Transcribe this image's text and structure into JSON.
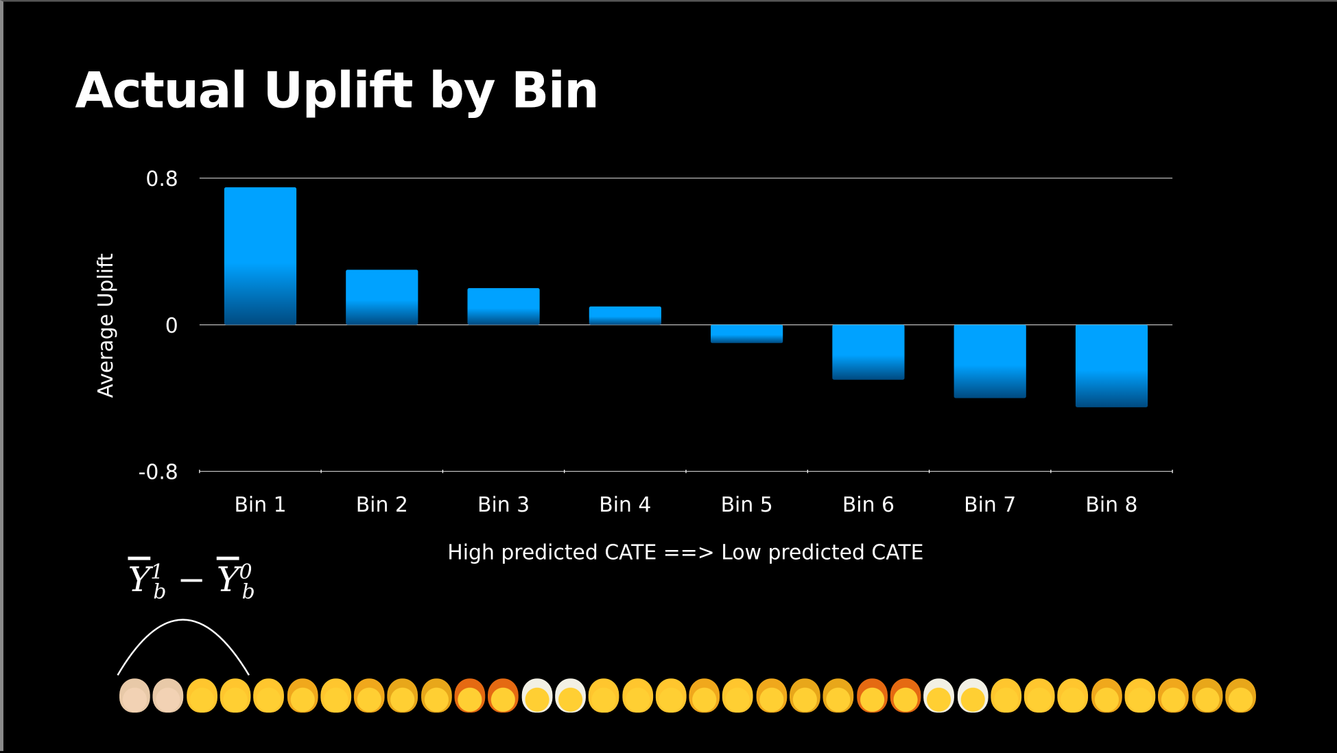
{
  "title": "Actual Uplift by Bin",
  "chart_data": {
    "type": "bar",
    "title": "Actual Uplift by Bin",
    "categories": [
      "Bin 1",
      "Bin 2",
      "Bin 3",
      "Bin 4",
      "Bin 5",
      "Bin 6",
      "Bin 7",
      "Bin 8"
    ],
    "values": [
      0.75,
      0.3,
      0.2,
      0.1,
      -0.1,
      -0.3,
      -0.4,
      -0.45
    ],
    "xlabel": "High predicted CATE ==> Low predicted CATE",
    "ylabel": "Average Uplift",
    "ylim": [
      -0.8,
      0.8
    ],
    "yticks": [
      "0.8",
      "0",
      "-0.8"
    ],
    "ytick_values": [
      0.8,
      0,
      -0.8
    ],
    "grid": true,
    "bar_color": "#00a2ff",
    "bar_color_dark": "#004a80"
  },
  "formula": {
    "base": "Y",
    "sup1": "1",
    "sup0": "0",
    "sub": "b",
    "op": "−"
  },
  "emojis": [
    "boy",
    "boy",
    "smiley",
    "grin",
    "man",
    "woman",
    "man-office",
    "woman-office",
    "man-curly",
    "woman-curly",
    "man-red",
    "woman-red",
    "man-white",
    "woman-white",
    "man-bald",
    "woman-bald",
    "man",
    "woman",
    "man-office",
    "woman-office",
    "man-curly",
    "woman-curly",
    "man-red",
    "woman-red",
    "man-white",
    "woman-white",
    "man-bald",
    "woman-bald",
    "man",
    "woman",
    "man-office",
    "woman-office",
    "man-curly",
    "woman-curly"
  ]
}
